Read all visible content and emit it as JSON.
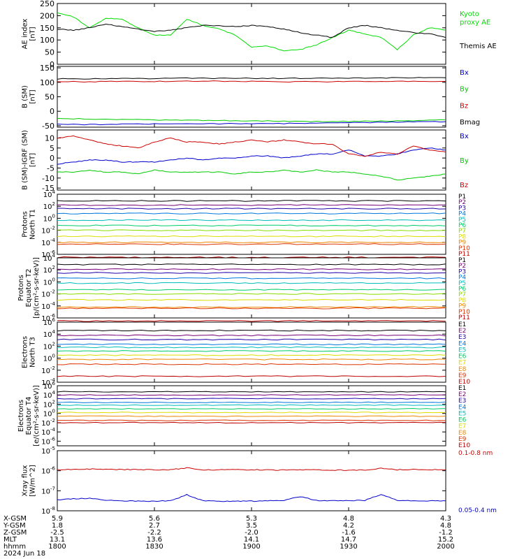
{
  "chart_data": [
    {
      "type": "line",
      "id": "ae",
      "ylabel_main": "AE index",
      "ylabel_unit": "[nT]",
      "y_ticks": [
        "0",
        "50",
        "100",
        "150",
        "200",
        "250"
      ],
      "ylim": [
        0,
        250
      ],
      "x": [
        1800,
        1805,
        1810,
        1815,
        1820,
        1825,
        1830,
        1835,
        1840,
        1845,
        1850,
        1855,
        1900,
        1905,
        1910,
        1915,
        1920,
        1925,
        1930,
        1935,
        1940,
        1945,
        1950,
        1955,
        2000
      ],
      "series": [
        {
          "name": "Kyoto proxy AE",
          "label_lines": [
            "Kyoto",
            "proxy AE"
          ],
          "color": "#00dd00",
          "values": [
            210,
            195,
            150,
            190,
            185,
            150,
            120,
            120,
            185,
            160,
            145,
            120,
            70,
            75,
            55,
            60,
            80,
            110,
            140,
            125,
            110,
            60,
            120,
            150,
            140
          ]
        },
        {
          "name": "Themis AE",
          "label_lines": [
            "Themis AE"
          ],
          "color": "#000000",
          "values": [
            145,
            140,
            150,
            165,
            155,
            145,
            135,
            140,
            150,
            160,
            158,
            155,
            160,
            155,
            145,
            130,
            120,
            110,
            150,
            160,
            150,
            140,
            130,
            125,
            110
          ]
        }
      ]
    },
    {
      "type": "line",
      "id": "bsm",
      "ylabel_main": "B (SM)",
      "ylabel_unit": "[nT]",
      "y_ticks": [
        "-50",
        "0",
        "50",
        "100",
        "150"
      ],
      "ylim": [
        -55,
        155
      ],
      "x": [
        1800,
        1810,
        1820,
        1830,
        1840,
        1850,
        1900,
        1910,
        1920,
        1930,
        1940,
        1950,
        2000
      ],
      "series": [
        {
          "name": "Bx",
          "color": "#0000cc",
          "values": [
            -45,
            -46,
            -45,
            -44,
            -44,
            -43,
            -42,
            -42,
            -41,
            -40,
            -38,
            -37,
            -36
          ]
        },
        {
          "name": "By",
          "color": "#00cc00",
          "values": [
            -25,
            -27,
            -28,
            -30,
            -31,
            -32,
            -33,
            -34,
            -35,
            -35,
            -34,
            -32,
            -30
          ]
        },
        {
          "name": "Bz",
          "color": "#cc0000",
          "values": [
            102,
            102,
            103,
            103,
            104,
            104,
            103,
            102,
            102,
            103,
            103,
            104,
            103
          ]
        },
        {
          "name": "Bmag",
          "color": "#000000",
          "values": [
            112,
            112,
            113,
            113,
            114,
            114,
            114,
            114,
            114,
            115,
            115,
            116,
            116
          ]
        }
      ]
    },
    {
      "type": "line",
      "id": "bdiff",
      "ylabel_main": "B (SM)-IGRF (SM)",
      "ylabel_unit": "[nT]",
      "y_ticks": [
        "-15",
        "-10",
        "-5",
        "0",
        "5",
        "10"
      ],
      "ylim": [
        -16,
        14
      ],
      "x": [
        1800,
        1805,
        1810,
        1815,
        1820,
        1825,
        1830,
        1835,
        1840,
        1845,
        1850,
        1855,
        1900,
        1905,
        1910,
        1915,
        1920,
        1925,
        1930,
        1935,
        1940,
        1945,
        1950,
        1955,
        2000
      ],
      "series": [
        {
          "name": "Bx",
          "color": "#0000cc",
          "values": [
            -3,
            -2,
            -1,
            -1,
            -2,
            -2,
            -2,
            -1,
            0,
            -1,
            0,
            0,
            1,
            1,
            0,
            1,
            2,
            2,
            4,
            1,
            1,
            2,
            4,
            5,
            4
          ]
        },
        {
          "name": "By",
          "color": "#00cc00",
          "values": [
            -7,
            -7,
            -6,
            -7,
            -7,
            -8,
            -6,
            -7,
            -7,
            -7,
            -7,
            -8,
            -7,
            -7,
            -6,
            -7,
            -6,
            -7,
            -7,
            -8,
            -9,
            -11,
            -10,
            -9,
            -8
          ]
        },
        {
          "name": "Bz",
          "color": "#cc0000",
          "values": [
            10,
            11,
            9,
            7,
            6,
            5,
            8,
            10,
            8,
            8,
            7,
            8,
            9,
            8,
            9,
            8,
            7,
            7,
            2,
            1,
            3,
            2,
            6,
            4,
            3
          ]
        }
      ]
    },
    {
      "type": "line",
      "id": "protons-north",
      "log": true,
      "ylabel_lines": [
        "Protons",
        "North T1"
      ],
      "y_ticks": [
        {
          "base": "10",
          "exp": "4"
        },
        {
          "base": "10",
          "exp": "2"
        },
        {
          "base": "10",
          "exp": "0"
        },
        {
          "base": "10",
          "exp": "-2"
        },
        {
          "base": "10",
          "exp": "-4"
        },
        {
          "base": "10",
          "exp": "-6"
        }
      ],
      "ylim": [
        -6,
        4
      ],
      "series": [
        {
          "name": "P1",
          "color": "#000000",
          "level": 2.9
        },
        {
          "name": "P2",
          "color": "#770077",
          "level": 2.2
        },
        {
          "name": "P3",
          "color": "#2200aa",
          "level": 1.6
        },
        {
          "name": "P4",
          "color": "#0077dd",
          "level": 0.8
        },
        {
          "name": "P5",
          "color": "#00bbbb",
          "level": -0.3
        },
        {
          "name": "P6",
          "color": "#00cc66",
          "level": -1.2
        },
        {
          "name": "P7",
          "color": "#88dd00",
          "level": -2.0
        },
        {
          "name": "P8",
          "color": "#dddd00",
          "level": -3.0
        },
        {
          "name": "P9",
          "color": "#ee8800",
          "level": -4.0
        },
        {
          "name": "P10",
          "color": "#dd3300",
          "level": -4.3
        },
        {
          "name": "P11",
          "color": "#bb0000",
          "level": -6.5
        }
      ]
    },
    {
      "type": "line",
      "id": "protons-equator",
      "log": true,
      "ylabel_lines": [
        "Protons",
        "Equator T2"
      ],
      "ylabel_unit_text": "[p/(cm²-s-sr-keV)]",
      "y_ticks": [
        {
          "base": "10",
          "exp": "4"
        },
        {
          "base": "10",
          "exp": "2"
        },
        {
          "base": "10",
          "exp": "0"
        },
        {
          "base": "10",
          "exp": "-2"
        },
        {
          "base": "10",
          "exp": "-4"
        },
        {
          "base": "10",
          "exp": "-6"
        }
      ],
      "ylim": [
        -6,
        4
      ],
      "series": [
        {
          "name": "P1",
          "color": "#000000",
          "level": 2.9
        },
        {
          "name": "P2",
          "color": "#770077",
          "level": 2.1
        },
        {
          "name": "P3",
          "color": "#2200aa",
          "level": 1.5
        },
        {
          "name": "P4",
          "color": "#0077dd",
          "level": 0.6
        },
        {
          "name": "P5",
          "color": "#00bbbb",
          "level": -0.2
        },
        {
          "name": "P6",
          "color": "#00cc66",
          "level": -1.3
        },
        {
          "name": "P7",
          "color": "#88dd00",
          "level": -2.0
        },
        {
          "name": "P8",
          "color": "#dddd00",
          "level": -3.0
        },
        {
          "name": "P9",
          "color": "#ee8800",
          "level": -4.2
        },
        {
          "name": "P10",
          "color": "#dd3300",
          "level": -4.4
        },
        {
          "name": "P11",
          "color": "#bb0000",
          "level": -6.5
        }
      ]
    },
    {
      "type": "line",
      "id": "electrons-north",
      "log": true,
      "ylabel_lines": [
        "Electrons",
        "North T3"
      ],
      "y_ticks": [
        {
          "base": "10",
          "exp": "6"
        },
        {
          "base": "10",
          "exp": "4"
        },
        {
          "base": "10",
          "exp": "2"
        },
        {
          "base": "10",
          "exp": "0"
        },
        {
          "base": "10",
          "exp": "-2"
        },
        {
          "base": "10",
          "exp": "-4"
        }
      ],
      "ylim": [
        -4,
        6
      ],
      "series": [
        {
          "name": "E1",
          "color": "#000000",
          "level": 4.6
        },
        {
          "name": "E2",
          "color": "#770077",
          "level": 3.8
        },
        {
          "name": "E3",
          "color": "#2200aa",
          "level": 3.1
        },
        {
          "name": "E4",
          "color": "#0077dd",
          "level": 2.3
        },
        {
          "name": "E5",
          "color": "#00bbbb",
          "level": 1.8
        },
        {
          "name": "E6",
          "color": "#00cc66",
          "level": 1.2
        },
        {
          "name": "E7",
          "color": "#dddd00",
          "level": 0.5
        },
        {
          "name": "E8",
          "color": "#ee8800",
          "level": -0.2
        },
        {
          "name": "E9",
          "color": "#dd3300",
          "level": -1.0
        },
        {
          "name": "E10",
          "color": "#bb0000",
          "level": -3.0
        }
      ]
    },
    {
      "type": "line",
      "id": "electrons-equator",
      "log": true,
      "ylabel_lines": [
        "Electrons",
        "Equator T4"
      ],
      "ylabel_unit_text": "[e/(cm²-s-sr-keV)]",
      "y_ticks": [
        {
          "base": "10",
          "exp": "6"
        },
        {
          "base": "10",
          "exp": "4"
        },
        {
          "base": "10",
          "exp": "2"
        },
        {
          "base": "10",
          "exp": "0"
        },
        {
          "base": "10",
          "exp": "-2"
        },
        {
          "base": "10",
          "exp": "-4"
        },
        {
          "base": "10",
          "exp": "-6"
        }
      ],
      "ylim": [
        -7,
        6
      ],
      "series": [
        {
          "name": "E1",
          "color": "#000000",
          "level": 4.7
        },
        {
          "name": "E2",
          "color": "#770077",
          "level": 4.0
        },
        {
          "name": "E3",
          "color": "#2200aa",
          "level": 3.2
        },
        {
          "name": "E4",
          "color": "#0077dd",
          "level": 2.4
        },
        {
          "name": "E5",
          "color": "#00bbbb",
          "level": 1.8
        },
        {
          "name": "E6",
          "color": "#00cc66",
          "level": 1.0
        },
        {
          "name": "E7",
          "color": "#dddd00",
          "level": 0.2
        },
        {
          "name": "E8",
          "color": "#ee8800",
          "level": -0.6
        },
        {
          "name": "E9",
          "color": "#dd3300",
          "level": -1.5
        },
        {
          "name": "E10",
          "color": "#bb0000",
          "level": -2.0
        }
      ]
    },
    {
      "type": "line",
      "id": "xray",
      "log": true,
      "ylabel_main": "Xray flux",
      "ylabel_unit": "[W/m^2]",
      "y_ticks": [
        {
          "base": "10",
          "exp": "-5"
        },
        {
          "base": "10",
          "exp": "-6"
        },
        {
          "base": "10",
          "exp": "-7"
        },
        {
          "base": "10",
          "exp": "-8"
        }
      ],
      "ylim": [
        -8,
        -5
      ],
      "x": [
        1800,
        1805,
        1810,
        1815,
        1820,
        1825,
        1830,
        1835,
        1840,
        1845,
        1850,
        1855,
        1900,
        1905,
        1910,
        1915,
        1920,
        1925,
        1930,
        1935,
        1940,
        1945,
        1950,
        1955,
        2000
      ],
      "series": [
        {
          "name": "0.1-0.8 nm",
          "color": "#cc0000",
          "values": [
            -5.95,
            -5.93,
            -5.92,
            -5.93,
            -5.94,
            -5.95,
            -5.96,
            -5.95,
            -5.86,
            -5.96,
            -5.95,
            -5.95,
            -5.95,
            -5.96,
            -5.97,
            -5.96,
            -5.96,
            -5.97,
            -5.97,
            -5.96,
            -5.88,
            -5.95,
            -5.94,
            -5.95,
            -5.96
          ]
        },
        {
          "name": "0.05-0.4 nm",
          "color": "#0000cc",
          "values": [
            -7.45,
            -7.4,
            -7.38,
            -7.48,
            -7.5,
            -7.52,
            -7.52,
            -7.5,
            -7.2,
            -7.5,
            -7.52,
            -7.52,
            -7.52,
            -7.5,
            -7.48,
            -7.3,
            -7.48,
            -7.5,
            -7.5,
            -7.48,
            -7.18,
            -7.48,
            -7.5,
            -7.5,
            -7.5
          ]
        }
      ]
    }
  ],
  "xaxis": {
    "row_labels": [
      "X-GSM",
      "Y-GSM",
      "Z-GSM",
      "MLT",
      "hhmm"
    ],
    "columns": [
      {
        "time": 1800,
        "values": [
          "5.9",
          "1.8",
          "-2.5",
          "13.1",
          "1800"
        ]
      },
      {
        "time": 1830,
        "values": [
          "5.6",
          "2.7",
          "-2.2",
          "13.6",
          "1830"
        ]
      },
      {
        "time": 1900,
        "values": [
          "5.3",
          "3.5",
          "-2.0",
          "14.1",
          "1900"
        ]
      },
      {
        "time": 1930,
        "values": [
          "4.8",
          "4.2",
          "-1.6",
          "14.7",
          "1930"
        ]
      },
      {
        "time": 2000,
        "values": [
          "4.3",
          "4.8",
          "-1.2",
          "15.2",
          "2000"
        ]
      }
    ],
    "date": "2024 Jun 18"
  }
}
